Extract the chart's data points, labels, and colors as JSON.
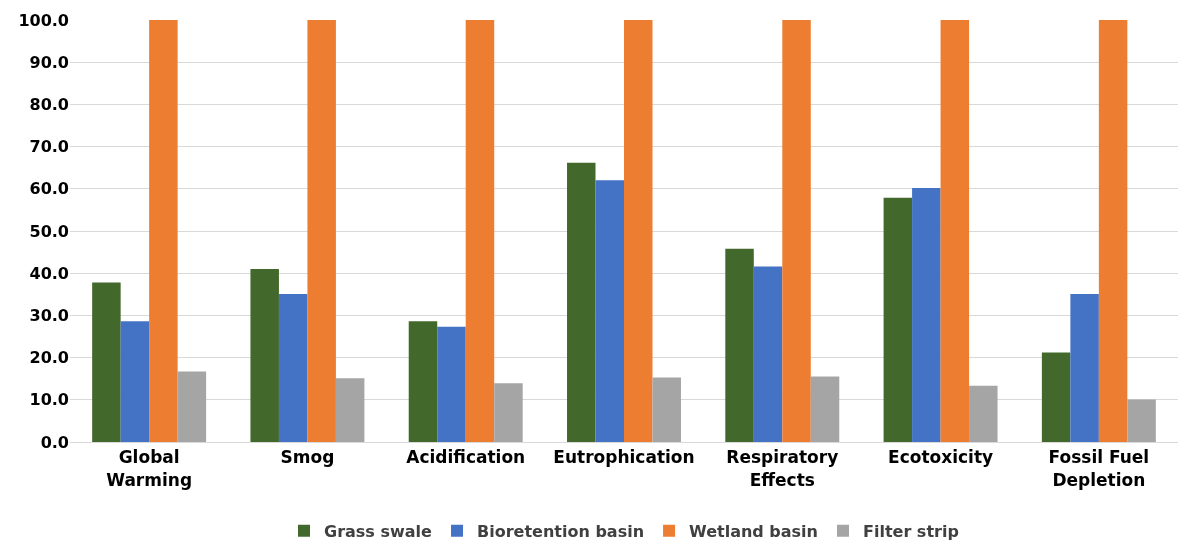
{
  "chart_data": {
    "type": "bar",
    "categories": [
      "Global Warming",
      "Smog",
      "Acidification",
      "Eutrophication",
      "Respiratory Effects",
      "Ecotoxicity",
      "Fossil Fuel Depletion"
    ],
    "series": [
      {
        "name": "Grass swale",
        "color": "#43682b",
        "values": [
          37.8,
          41.0,
          28.6,
          66.2,
          45.8,
          57.9,
          21.2
        ]
      },
      {
        "name": "Bioretention basin",
        "color": "#4472c4",
        "values": [
          28.6,
          35.1,
          27.3,
          62.0,
          41.6,
          60.2,
          35.1
        ]
      },
      {
        "name": "Wetland basin",
        "color": "#ed7d31",
        "values": [
          100,
          100,
          100,
          100,
          100,
          100,
          100
        ]
      },
      {
        "name": "Filter strip",
        "color": "#a5a5a5",
        "values": [
          16.7,
          15.1,
          13.9,
          15.3,
          15.5,
          13.3,
          10.1
        ]
      }
    ],
    "ylim": [
      0,
      100
    ],
    "yticks": [
      {
        "value": 0,
        "label": "0.0"
      },
      {
        "value": 10,
        "label": "10.0"
      },
      {
        "value": 20,
        "label": "20.0"
      },
      {
        "value": 30,
        "label": "30.0"
      },
      {
        "value": 40,
        "label": "40.0"
      },
      {
        "value": 50,
        "label": "50.0"
      },
      {
        "value": 60,
        "label": "60.0"
      },
      {
        "value": 70,
        "label": "70.0"
      },
      {
        "value": 80,
        "label": "80.0"
      },
      {
        "value": 90,
        "label": "90.0"
      },
      {
        "value": 100,
        "label": "100.0"
      }
    ],
    "grid": "y",
    "legend": "bottom"
  }
}
